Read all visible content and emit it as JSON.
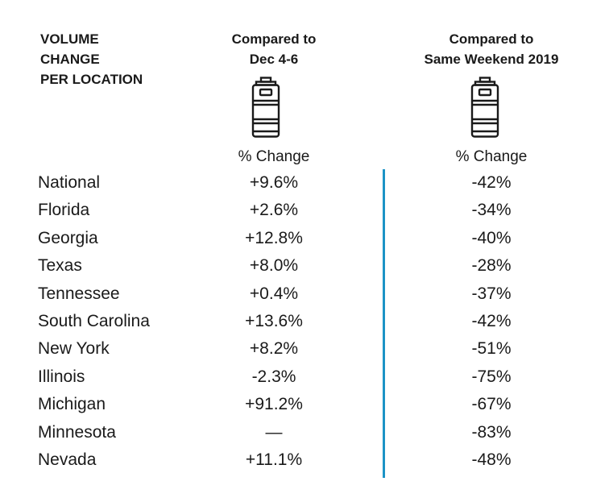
{
  "header": {
    "title_lines": [
      "VOLUME",
      "CHANGE",
      "PER LOCATION"
    ],
    "col1_lines": [
      "Compared to",
      "Dec 4-6"
    ],
    "col2_lines": [
      "Compared to",
      "Same Weekend 2019"
    ],
    "col1_sub": "% Change",
    "col2_sub": "% Change",
    "icon": "keg-icon",
    "divider_color": "#1b93c6"
  },
  "chart_data": {
    "type": "table",
    "columns": [
      "Location",
      "Compared to Dec 4-6 % Change",
      "Compared to Same Weekend 2019 % Change"
    ],
    "rows": [
      {
        "location": "National",
        "vs_dec": "+9.6%",
        "vs_2019": "-42%"
      },
      {
        "location": "Florida",
        "vs_dec": "+2.6%",
        "vs_2019": "-34%"
      },
      {
        "location": "Georgia",
        "vs_dec": "+12.8%",
        "vs_2019": "-40%"
      },
      {
        "location": "Texas",
        "vs_dec": "+8.0%",
        "vs_2019": "-28%"
      },
      {
        "location": "Tennessee",
        "vs_dec": "+0.4%",
        "vs_2019": "-37%"
      },
      {
        "location": "South Carolina",
        "vs_dec": "+13.6%",
        "vs_2019": "-42%"
      },
      {
        "location": "New York",
        "vs_dec": "+8.2%",
        "vs_2019": "-51%"
      },
      {
        "location": "Illinois",
        "vs_dec": "-2.3%",
        "vs_2019": "-75%"
      },
      {
        "location": "Michigan",
        "vs_dec": "+91.2%",
        "vs_2019": "-67%"
      },
      {
        "location": "Minnesota",
        "vs_dec": "—",
        "vs_2019": "-83%"
      },
      {
        "location": "Nevada",
        "vs_dec": "+11.1%",
        "vs_2019": "-48%"
      }
    ]
  }
}
